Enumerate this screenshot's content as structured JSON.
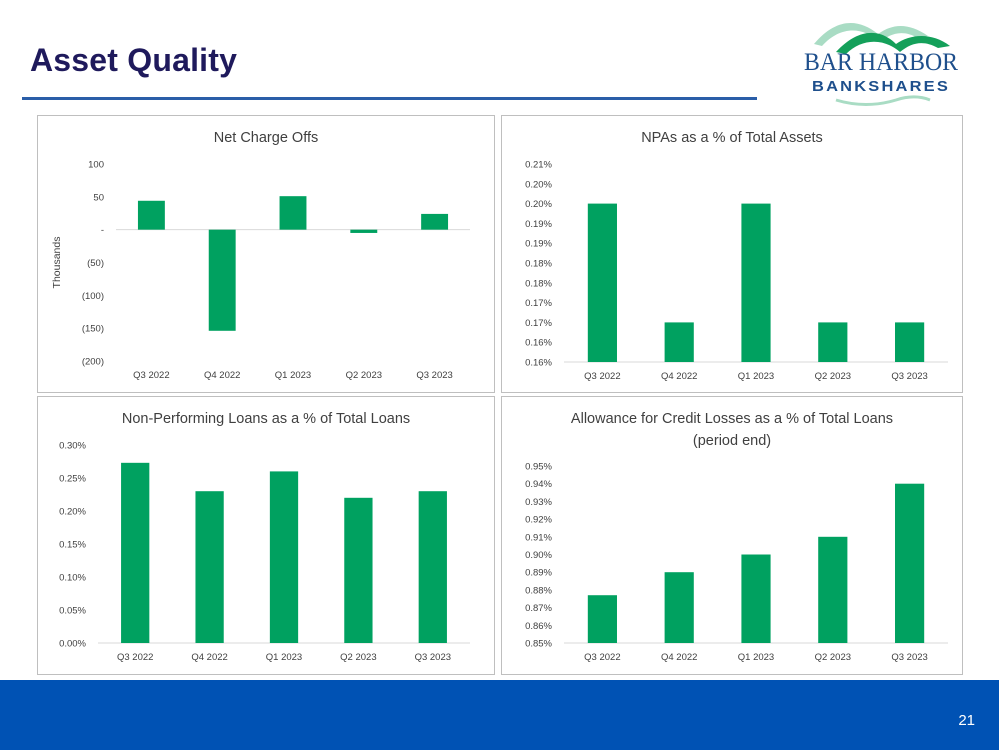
{
  "slide": {
    "title": "Asset Quality",
    "page_number": "21"
  },
  "logo": {
    "line1": "BAR HARBOR",
    "line2": "BANKSHARES",
    "colors": {
      "green": "#14a05a",
      "mint": "#a9dcc4",
      "navy": "#1e4f8c"
    }
  },
  "colors": {
    "bar": "#00a160",
    "axis": "#d9d9d9",
    "text": "#404040",
    "footer": "#0052b4"
  },
  "chart_data": [
    {
      "id": "ncos",
      "type": "bar",
      "title": "Net Charge Offs",
      "title_lines": [
        "Net Charge Offs"
      ],
      "xlabel": "",
      "ylabel": "Thousands",
      "categories": [
        "Q3 2022",
        "Q4 2022",
        "Q1 2023",
        "Q2 2023",
        "Q3 2023"
      ],
      "values": [
        44,
        -154,
        51,
        -5,
        24
      ],
      "ylim": [
        -200,
        100
      ],
      "yticks": [
        100,
        50,
        0,
        -50,
        -100,
        -150,
        -200
      ],
      "ytick_labels": [
        "100",
        "50",
        "-",
        "(50)",
        "(100)",
        "(150)",
        "(200)"
      ]
    },
    {
      "id": "npas",
      "type": "bar",
      "title": "NPAs as a % of Total Assets",
      "title_lines": [
        "NPAs as a % of Total Assets"
      ],
      "xlabel": "",
      "ylabel": "",
      "categories": [
        "Q3 2022",
        "Q4 2022",
        "Q1 2023",
        "Q2 2023",
        "Q3 2023"
      ],
      "values": [
        0.2,
        0.17,
        0.2,
        0.17,
        0.17
      ],
      "ylim": [
        0.16,
        0.21
      ],
      "yticks": [
        0.21,
        0.205,
        0.2,
        0.195,
        0.19,
        0.185,
        0.18,
        0.175,
        0.17,
        0.165,
        0.16
      ],
      "ytick_labels": [
        "0.21%",
        "0.20%",
        "0.20%",
        "0.19%",
        "0.19%",
        "0.18%",
        "0.18%",
        "0.17%",
        "0.17%",
        "0.16%",
        "0.16%"
      ]
    },
    {
      "id": "npls",
      "type": "bar",
      "title": "Non-Performing Loans as a % of Total Loans",
      "title_lines": [
        "Non-Performing Loans as a % of Total Loans"
      ],
      "xlabel": "",
      "ylabel": "",
      "categories": [
        "Q3 2022",
        "Q4 2022",
        "Q1 2023",
        "Q2 2023",
        "Q3 2023"
      ],
      "values": [
        0.273,
        0.23,
        0.26,
        0.22,
        0.23
      ],
      "ylim": [
        0,
        0.3
      ],
      "yticks": [
        0.3,
        0.25,
        0.2,
        0.15,
        0.1,
        0.05,
        0
      ],
      "ytick_labels": [
        "0.30%",
        "0.25%",
        "0.20%",
        "0.15%",
        "0.10%",
        "0.05%",
        "0.00%"
      ]
    },
    {
      "id": "acl",
      "type": "bar",
      "title": "Allowance for Credit Losses as a % of Total Loans (period end)",
      "title_lines": [
        "Allowance for Credit Losses as a % of Total Loans",
        "(period end)"
      ],
      "xlabel": "",
      "ylabel": "",
      "categories": [
        "Q3 2022",
        "Q4 2022",
        "Q1 2023",
        "Q2 2023",
        "Q3 2023"
      ],
      "values": [
        0.877,
        0.89,
        0.9,
        0.91,
        0.94
      ],
      "ylim": [
        0.85,
        0.95
      ],
      "yticks": [
        0.95,
        0.94,
        0.93,
        0.92,
        0.91,
        0.9,
        0.89,
        0.88,
        0.87,
        0.86,
        0.85
      ],
      "ytick_labels": [
        "0.95%",
        "0.94%",
        "0.93%",
        "0.92%",
        "0.91%",
        "0.90%",
        "0.89%",
        "0.88%",
        "0.87%",
        "0.86%",
        "0.85%"
      ]
    }
  ]
}
